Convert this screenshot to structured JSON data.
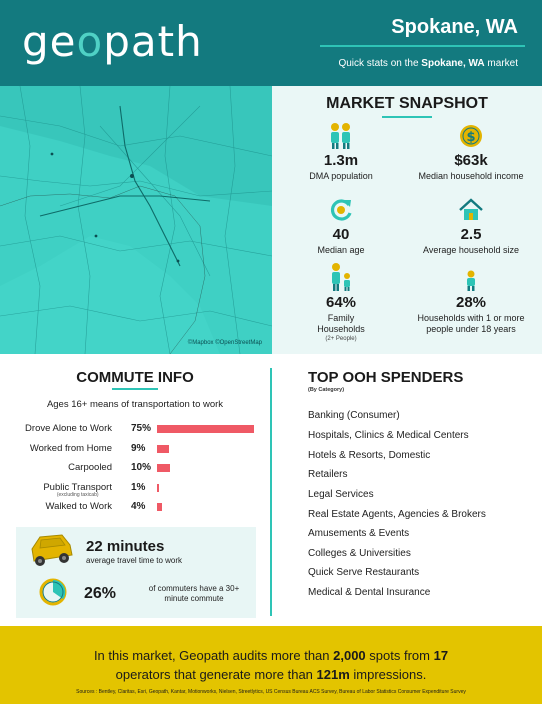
{
  "header": {
    "logo_pre": "ge",
    "logo_o": "o",
    "logo_post": "path",
    "city": "Spokane, WA",
    "tagline_pre": "Quick stats on the ",
    "tagline_bold": "Spokane, WA",
    "tagline_post": " market"
  },
  "map": {
    "credit": "©Mapbox ©OpenStreetMap"
  },
  "snapshot": {
    "title": "MARKET SNAPSHOT",
    "stats": [
      {
        "icon": "family-icon",
        "value": "1.3m",
        "label": "DMA population",
        "sub": ""
      },
      {
        "icon": "dollar-coin-icon",
        "value": "$63k",
        "label": "Median household income",
        "sub": ""
      },
      {
        "icon": "refresh-arrow-icon",
        "value": "40",
        "label": "Median age",
        "sub": ""
      },
      {
        "icon": "house-icon",
        "value": "2.5",
        "label": "Average household size",
        "sub": ""
      },
      {
        "icon": "parent-child-icon",
        "value": "64%",
        "label": "Family Households",
        "sub": "(2+ People)"
      },
      {
        "icon": "child-icon",
        "value": "28%",
        "label": "Households with 1 or more people under 18 years",
        "sub": ""
      }
    ]
  },
  "commute": {
    "title": "COMMUTE INFO",
    "subtitle": "Ages 16+ means of transportation to work",
    "rows": [
      {
        "label": "Drove Alone to Work",
        "note": "",
        "pct": "75%",
        "value": 75
      },
      {
        "label": "Worked from Home",
        "note": "",
        "pct": "9%",
        "value": 9
      },
      {
        "label": "Carpooled",
        "note": "",
        "pct": "10%",
        "value": 10
      },
      {
        "label": "Public Transport",
        "note": "(excluding taxicab)",
        "pct": "1%",
        "value": 1
      },
      {
        "label": "Walked to Work",
        "note": "",
        "pct": "4%",
        "value": 4
      }
    ],
    "travel_time": "22 minutes",
    "travel_label": "average travel time to work",
    "long_pct": "26%",
    "long_label": "of commuters have a 30+ minute commute"
  },
  "spenders": {
    "title": "TOP OOH SPENDERS",
    "subtitle": "(By Category)",
    "items": [
      "Banking (Consumer)",
      "Hospitals, Clinics & Medical Centers",
      "Hotels & Resorts, Domestic",
      "Retailers",
      "Legal Services",
      "Real Estate Agents, Agencies & Brokers",
      "Amusements & Events",
      "Colleges & Universities",
      "Quick Serve Restaurants",
      "Medical & Dental Insurance"
    ]
  },
  "footer": {
    "t1": "In this market, Geopath audits more than ",
    "spots": "2,000",
    "t2": " spots from ",
    "operators": "17",
    "t3": "operators that generate more than ",
    "impressions": "121m",
    "t4": " impressions.",
    "sources": "Sources : Bentley, Claritas, Esri, Geopath, Kantar, Motionworks, Nielsen, Streetlytics, US Census Bureau ACS Survey, Bureau of Labor Statistics Consumer Expenditure Survey"
  },
  "colors": {
    "teal": "#137a7f",
    "accent": "#2ec4b6",
    "bar": "#ef5965",
    "footer": "#e3c400"
  }
}
